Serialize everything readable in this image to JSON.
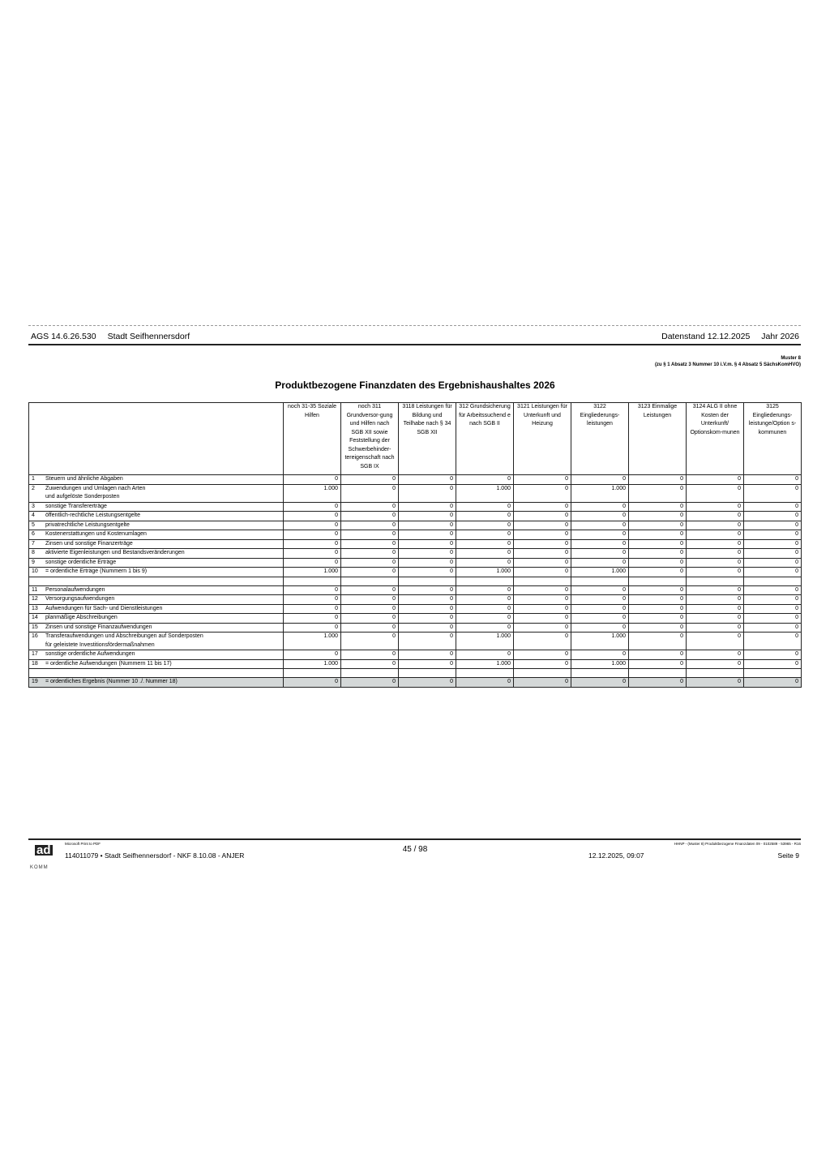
{
  "header": {
    "ags": "AGS 14.6.26.530",
    "city": "Stadt Seifhennersdorf",
    "datenstand": "Datenstand 12.12.2025",
    "jahr": "Jahr 2026"
  },
  "muster": {
    "title": "Muster 8",
    "ref": "(zu § 1 Absatz 3 Nummer 10 i.V.m. § 4 Absatz 5 SächsKomHVO)"
  },
  "title": "Produktbezogene Finanzdaten des Ergebnishaushaltes 2026",
  "columns": [
    "noch 31-35 Soziale Hilfen",
    "noch 311 Grundversor-gung und Hilfen nach SGB XII sowie Feststellung der Schwerbehinder-tereigenschaft nach SGB IX",
    "3118 Leistungen für Bildung und Teilhabe nach § 34 SGB XII",
    "312 Grundsicherung für Arbeitssuchend e nach SGB II",
    "3121 Leistungen für Unterkunft und Heizung",
    "3122 Eingliederungs-leistungen",
    "3123 Einmalige Leistungen",
    "3124 ALG II ohne Kosten der Unterkunft/ Optionskom-munen",
    "3125 Eingliederungs-leistunge/Option s-kommunen"
  ],
  "rows": [
    {
      "nr": "1",
      "label": "Steuern und ähnliche Abgaben",
      "values": [
        "0",
        "0",
        "0",
        "0",
        "0",
        "0",
        "0",
        "0",
        "0"
      ]
    },
    {
      "nr": "2",
      "label": "Zuwendungen und Umlagen nach Arten\nund aufgelöste Sonderposten",
      "values": [
        "1.000",
        "0",
        "0",
        "1.000",
        "0",
        "1.000",
        "0",
        "0",
        "0"
      ]
    },
    {
      "nr": "3",
      "label": "sonstige Transfererträge",
      "values": [
        "0",
        "0",
        "0",
        "0",
        "0",
        "0",
        "0",
        "0",
        "0"
      ]
    },
    {
      "nr": "4",
      "label": "öffentlich-rechtliche Leistungsentgelte",
      "values": [
        "0",
        "0",
        "0",
        "0",
        "0",
        "0",
        "0",
        "0",
        "0"
      ]
    },
    {
      "nr": "5",
      "label": "privatrechtliche Leistungsentgelte",
      "values": [
        "0",
        "0",
        "0",
        "0",
        "0",
        "0",
        "0",
        "0",
        "0"
      ]
    },
    {
      "nr": "6",
      "label": "Kostenerstattungen und Kostenumlagen",
      "values": [
        "0",
        "0",
        "0",
        "0",
        "0",
        "0",
        "0",
        "0",
        "0"
      ]
    },
    {
      "nr": "7",
      "label": "Zinsen und sonstige Finanzerträge",
      "values": [
        "0",
        "0",
        "0",
        "0",
        "0",
        "0",
        "0",
        "0",
        "0"
      ]
    },
    {
      "nr": "8",
      "label": "aktivierte Eigenleistungen und Bestandsveränderungen",
      "values": [
        "0",
        "0",
        "0",
        "0",
        "0",
        "0",
        "0",
        "0",
        "0"
      ]
    },
    {
      "nr": "9",
      "label": "sonstige ordentliche Erträge",
      "values": [
        "0",
        "0",
        "0",
        "0",
        "0",
        "0",
        "0",
        "0",
        "0"
      ]
    },
    {
      "nr": "10",
      "label": "= ordentliche Erträge (Nummern 1 bis 9)",
      "values": [
        "1.000",
        "0",
        "0",
        "1.000",
        "0",
        "1.000",
        "0",
        "0",
        "0"
      ]
    },
    {
      "blank": true
    },
    {
      "nr": "11",
      "label": "Personalaufwendungen",
      "values": [
        "0",
        "0",
        "0",
        "0",
        "0",
        "0",
        "0",
        "0",
        "0"
      ]
    },
    {
      "nr": "12",
      "label": "Versorgungsaufwendungen",
      "values": [
        "0",
        "0",
        "0",
        "0",
        "0",
        "0",
        "0",
        "0",
        "0"
      ]
    },
    {
      "nr": "13",
      "label": "Aufwendungen für Sach- und Dienstleistungen",
      "values": [
        "0",
        "0",
        "0",
        "0",
        "0",
        "0",
        "0",
        "0",
        "0"
      ]
    },
    {
      "nr": "14",
      "label": "planmäßige Abschreibungen",
      "values": [
        "0",
        "0",
        "0",
        "0",
        "0",
        "0",
        "0",
        "0",
        "0"
      ]
    },
    {
      "nr": "15",
      "label": "Zinsen und sonstige Finanzaufwendungen",
      "values": [
        "0",
        "0",
        "0",
        "0",
        "0",
        "0",
        "0",
        "0",
        "0"
      ]
    },
    {
      "nr": "16",
      "label": "Transferaufwendungen und Abschreibungen auf Sonderposten\nfür geleistete Investitionsfördermaßnahmen",
      "values": [
        "1.000",
        "0",
        "0",
        "1.000",
        "0",
        "1.000",
        "0",
        "0",
        "0"
      ]
    },
    {
      "nr": "17",
      "label": "sonstige ordentliche Aufwendungen",
      "values": [
        "0",
        "0",
        "0",
        "0",
        "0",
        "0",
        "0",
        "0",
        "0"
      ]
    },
    {
      "nr": "18",
      "label": "= ordentliche Aufwendungen (Nummern 11 bis 17)",
      "values": [
        "1.000",
        "0",
        "0",
        "1.000",
        "0",
        "1.000",
        "0",
        "0",
        "0"
      ]
    },
    {
      "blank": true
    },
    {
      "nr": "19",
      "label": "= ordentliches Ergebnis (Nummer 10 ./. Nummer 18)",
      "values": [
        "0",
        "0",
        "0",
        "0",
        "0",
        "0",
        "0",
        "0",
        "0"
      ],
      "sum": true
    }
  ],
  "footer": {
    "printer": "Microsoft Print to PDF",
    "logo": "ad KOMM",
    "left": "114011079 • Stadt Seifhennersdorf - NKF 8.10.08 - ANJER",
    "page": "45 / 98",
    "ref": "HHNP - (Muster 8) Produktbezogene Finanzdaten 09 - 0102589 - 53965 - R16",
    "date": "12.12.2025, 09:07",
    "seite": "Seite 9"
  }
}
